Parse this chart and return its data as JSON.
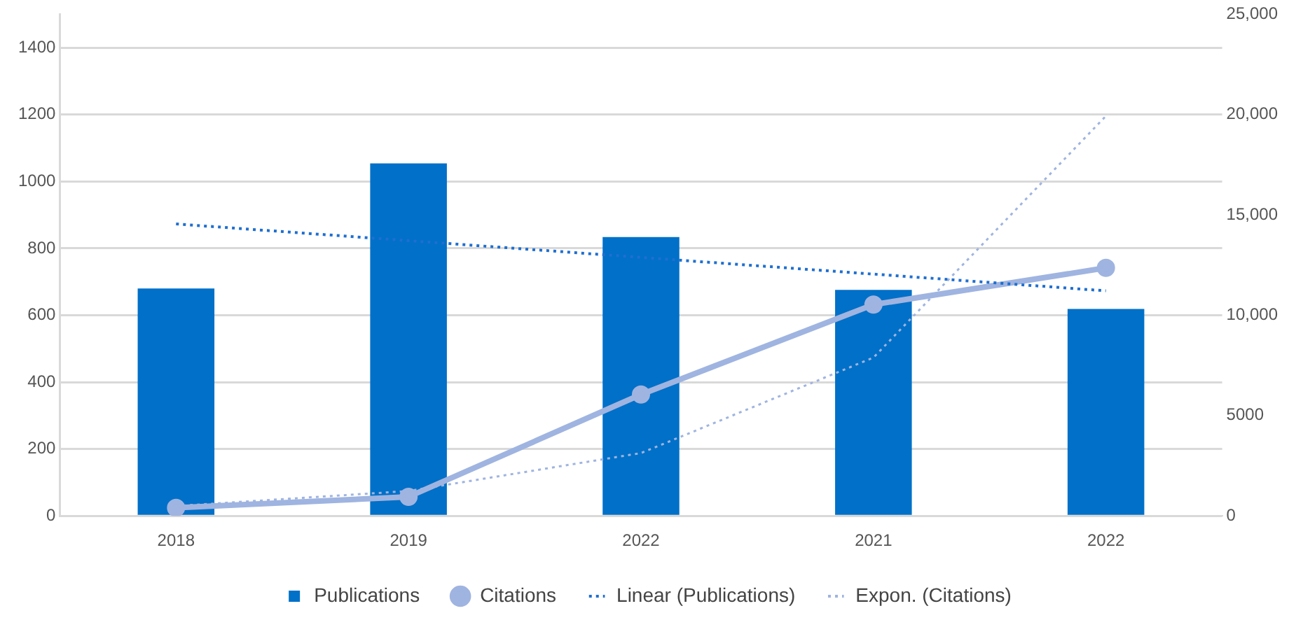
{
  "chart_data": {
    "type": "bar",
    "categories": [
      "2018",
      "2019",
      "2022",
      "2021",
      "2022"
    ],
    "series": [
      {
        "name": "Publications",
        "color": "#0070c8",
        "values": [
          680,
          1054,
          834,
          676,
          619
        ]
      },
      {
        "name": "Citations",
        "type": "line",
        "axis": "y2",
        "color": "#9fb4e0",
        "marker": "circle",
        "line_style": "solid",
        "values": [
          400,
          950,
          6050,
          10530,
          12360
        ]
      },
      {
        "name": "Linear (Publications)",
        "type": "line",
        "color": "#1f6fd0",
        "marker": "none",
        "line_style": "dotted",
        "values": [
          873,
          823,
          773,
          723,
          673
        ]
      },
      {
        "name": "Expon. (Citations)",
        "type": "line",
        "axis": "y2",
        "color": "#9fb4e0",
        "marker": "none",
        "line_style": "dotted",
        "values": [
          490,
          1240,
          3130,
          7890,
          19930
        ]
      }
    ],
    "ylim": [
      0,
      1500
    ],
    "yticks": [
      0,
      200,
      400,
      600,
      800,
      1000,
      1200,
      1400
    ],
    "y2lim": [
      0,
      25000
    ],
    "y2ticks": [
      0,
      5000,
      {
        "value": 10000,
        "label": "10,000"
      },
      {
        "value": 15000,
        "label": "15,000"
      },
      {
        "value": 20000,
        "label": "20,000"
      },
      {
        "value": 25000,
        "label": "25,000"
      }
    ],
    "grid": "y",
    "legend": "bottom"
  }
}
